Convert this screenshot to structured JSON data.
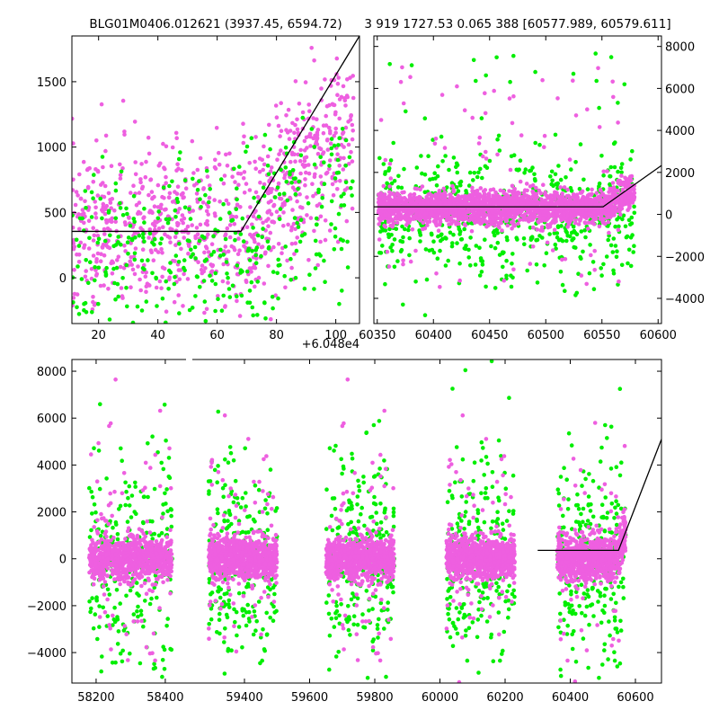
{
  "figure": {
    "left_title": "BLG01M0406.012621 (3937.45, 6594.72)",
    "right_title": "3 919 1727.53 0.065 388 [60577.989, 60579.611]",
    "colors": {
      "series_a": "#ee5fe0",
      "series_b": "#00ee00",
      "model": "#000000"
    }
  },
  "chart_data": [
    {
      "id": "zoom",
      "type": "scatter",
      "x_offset_label": "+6.048e4",
      "xlim": [
        11,
        108
      ],
      "ylim": [
        -350,
        1850
      ],
      "xticks": [
        20,
        40,
        60,
        80,
        100
      ],
      "yticks": [
        0,
        500,
        1000,
        1500
      ],
      "grid": false,
      "series": [
        {
          "color": "series_a",
          "cluster_centers": [
            0,
            1000,
            2000,
            3000,
            4000
          ],
          "cluster_widths": [
            0
          ],
          "points_per_cluster": 0,
          "spread": 500,
          "outlier_count": 0,
          "region": {
            "x": [
              11,
              106
            ],
            "y_center": 360,
            "y_spread": 420,
            "count": 900
          }
        },
        {
          "color": "series_b",
          "region": {
            "x": [
              11,
              106
            ],
            "y_center": 150,
            "y_spread": 520,
            "count": 380
          }
        }
      ],
      "model": [
        [
          11,
          355
        ],
        [
          68,
          355
        ],
        [
          108,
          1850
        ]
      ]
    },
    {
      "id": "recent",
      "type": "scatter",
      "xlim": [
        60347,
        60603
      ],
      "ylim": [
        -5200,
        8500
      ],
      "xticks": [
        60350,
        60400,
        60450,
        60500,
        60550,
        60600
      ],
      "yticks": [
        -4000,
        -2000,
        0,
        2000,
        4000,
        6000,
        8000
      ],
      "ytick_side": "right",
      "grid": false,
      "series": [
        {
          "color": "series_a",
          "region": {
            "x": [
              60351,
              60579
            ],
            "y_center": 300,
            "y_spread": 700,
            "count": 2200
          }
        },
        {
          "color": "series_b",
          "region": {
            "x": [
              60351,
              60579
            ],
            "y_center": -100,
            "y_spread": 1400,
            "count": 700
          }
        }
      ],
      "model": [
        [
          60347,
          360
        ],
        [
          60551,
          360
        ],
        [
          60603,
          2330
        ]
      ]
    },
    {
      "id": "full",
      "type": "scatter",
      "xlim": [
        58130,
        60680
      ],
      "ylim": [
        -5300,
        8500
      ],
      "xticks": [
        58200,
        58400,
        59400,
        59600,
        59800,
        60000,
        60200,
        60400,
        60600
      ],
      "yticks": [
        -4000,
        -2000,
        0,
        2000,
        4000,
        6000,
        8000
      ],
      "broken_axis": {
        "break_x_pixel_gap": true
      },
      "grid": false,
      "seasons": [
        {
          "x": [
            58180,
            58420
          ]
        },
        {
          "x": [
            59290,
            59500
          ]
        },
        {
          "x": [
            59650,
            59860
          ]
        },
        {
          "x": [
            60020,
            60230
          ]
        },
        {
          "x": [
            60360,
            60570
          ]
        }
      ],
      "series": [
        {
          "color": "series_a",
          "y_center": 0,
          "y_spread": 1300
        },
        {
          "color": "series_b",
          "y_center": -200,
          "y_spread": 2600
        }
      ],
      "model": [
        [
          60300,
          360
        ],
        [
          60548,
          360
        ],
        [
          60680,
          5100
        ]
      ]
    }
  ]
}
